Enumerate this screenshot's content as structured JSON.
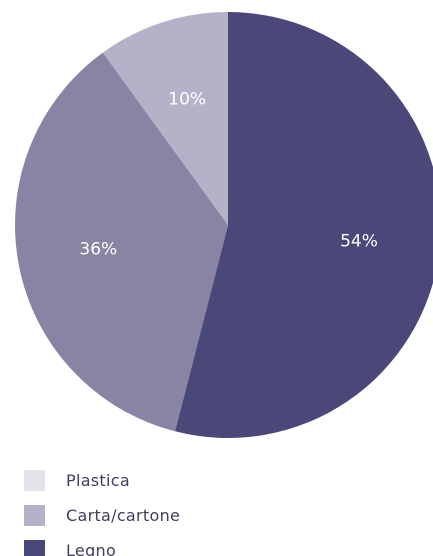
{
  "chart_data": {
    "type": "pie",
    "title": "",
    "start_angle_deg": 0,
    "direction": "clockwise",
    "slices": [
      {
        "label": "Legno",
        "value": 54,
        "display": "54%",
        "color": "#4a4878"
      },
      {
        "label": "Carta/cartone",
        "value": 36,
        "display": "36%",
        "color": "#8a84a4"
      },
      {
        "label": "Plastica",
        "value": 10,
        "display": "10%",
        "color": "#b6b1c9"
      }
    ],
    "legend": {
      "placement": "bottom-left",
      "items": [
        {
          "label": "Plastica",
          "color": "#e4e3ec"
        },
        {
          "label": "Carta/cartone",
          "color": "#b6b1c9"
        },
        {
          "label": "Legno",
          "color": "#4a4878"
        }
      ]
    }
  }
}
